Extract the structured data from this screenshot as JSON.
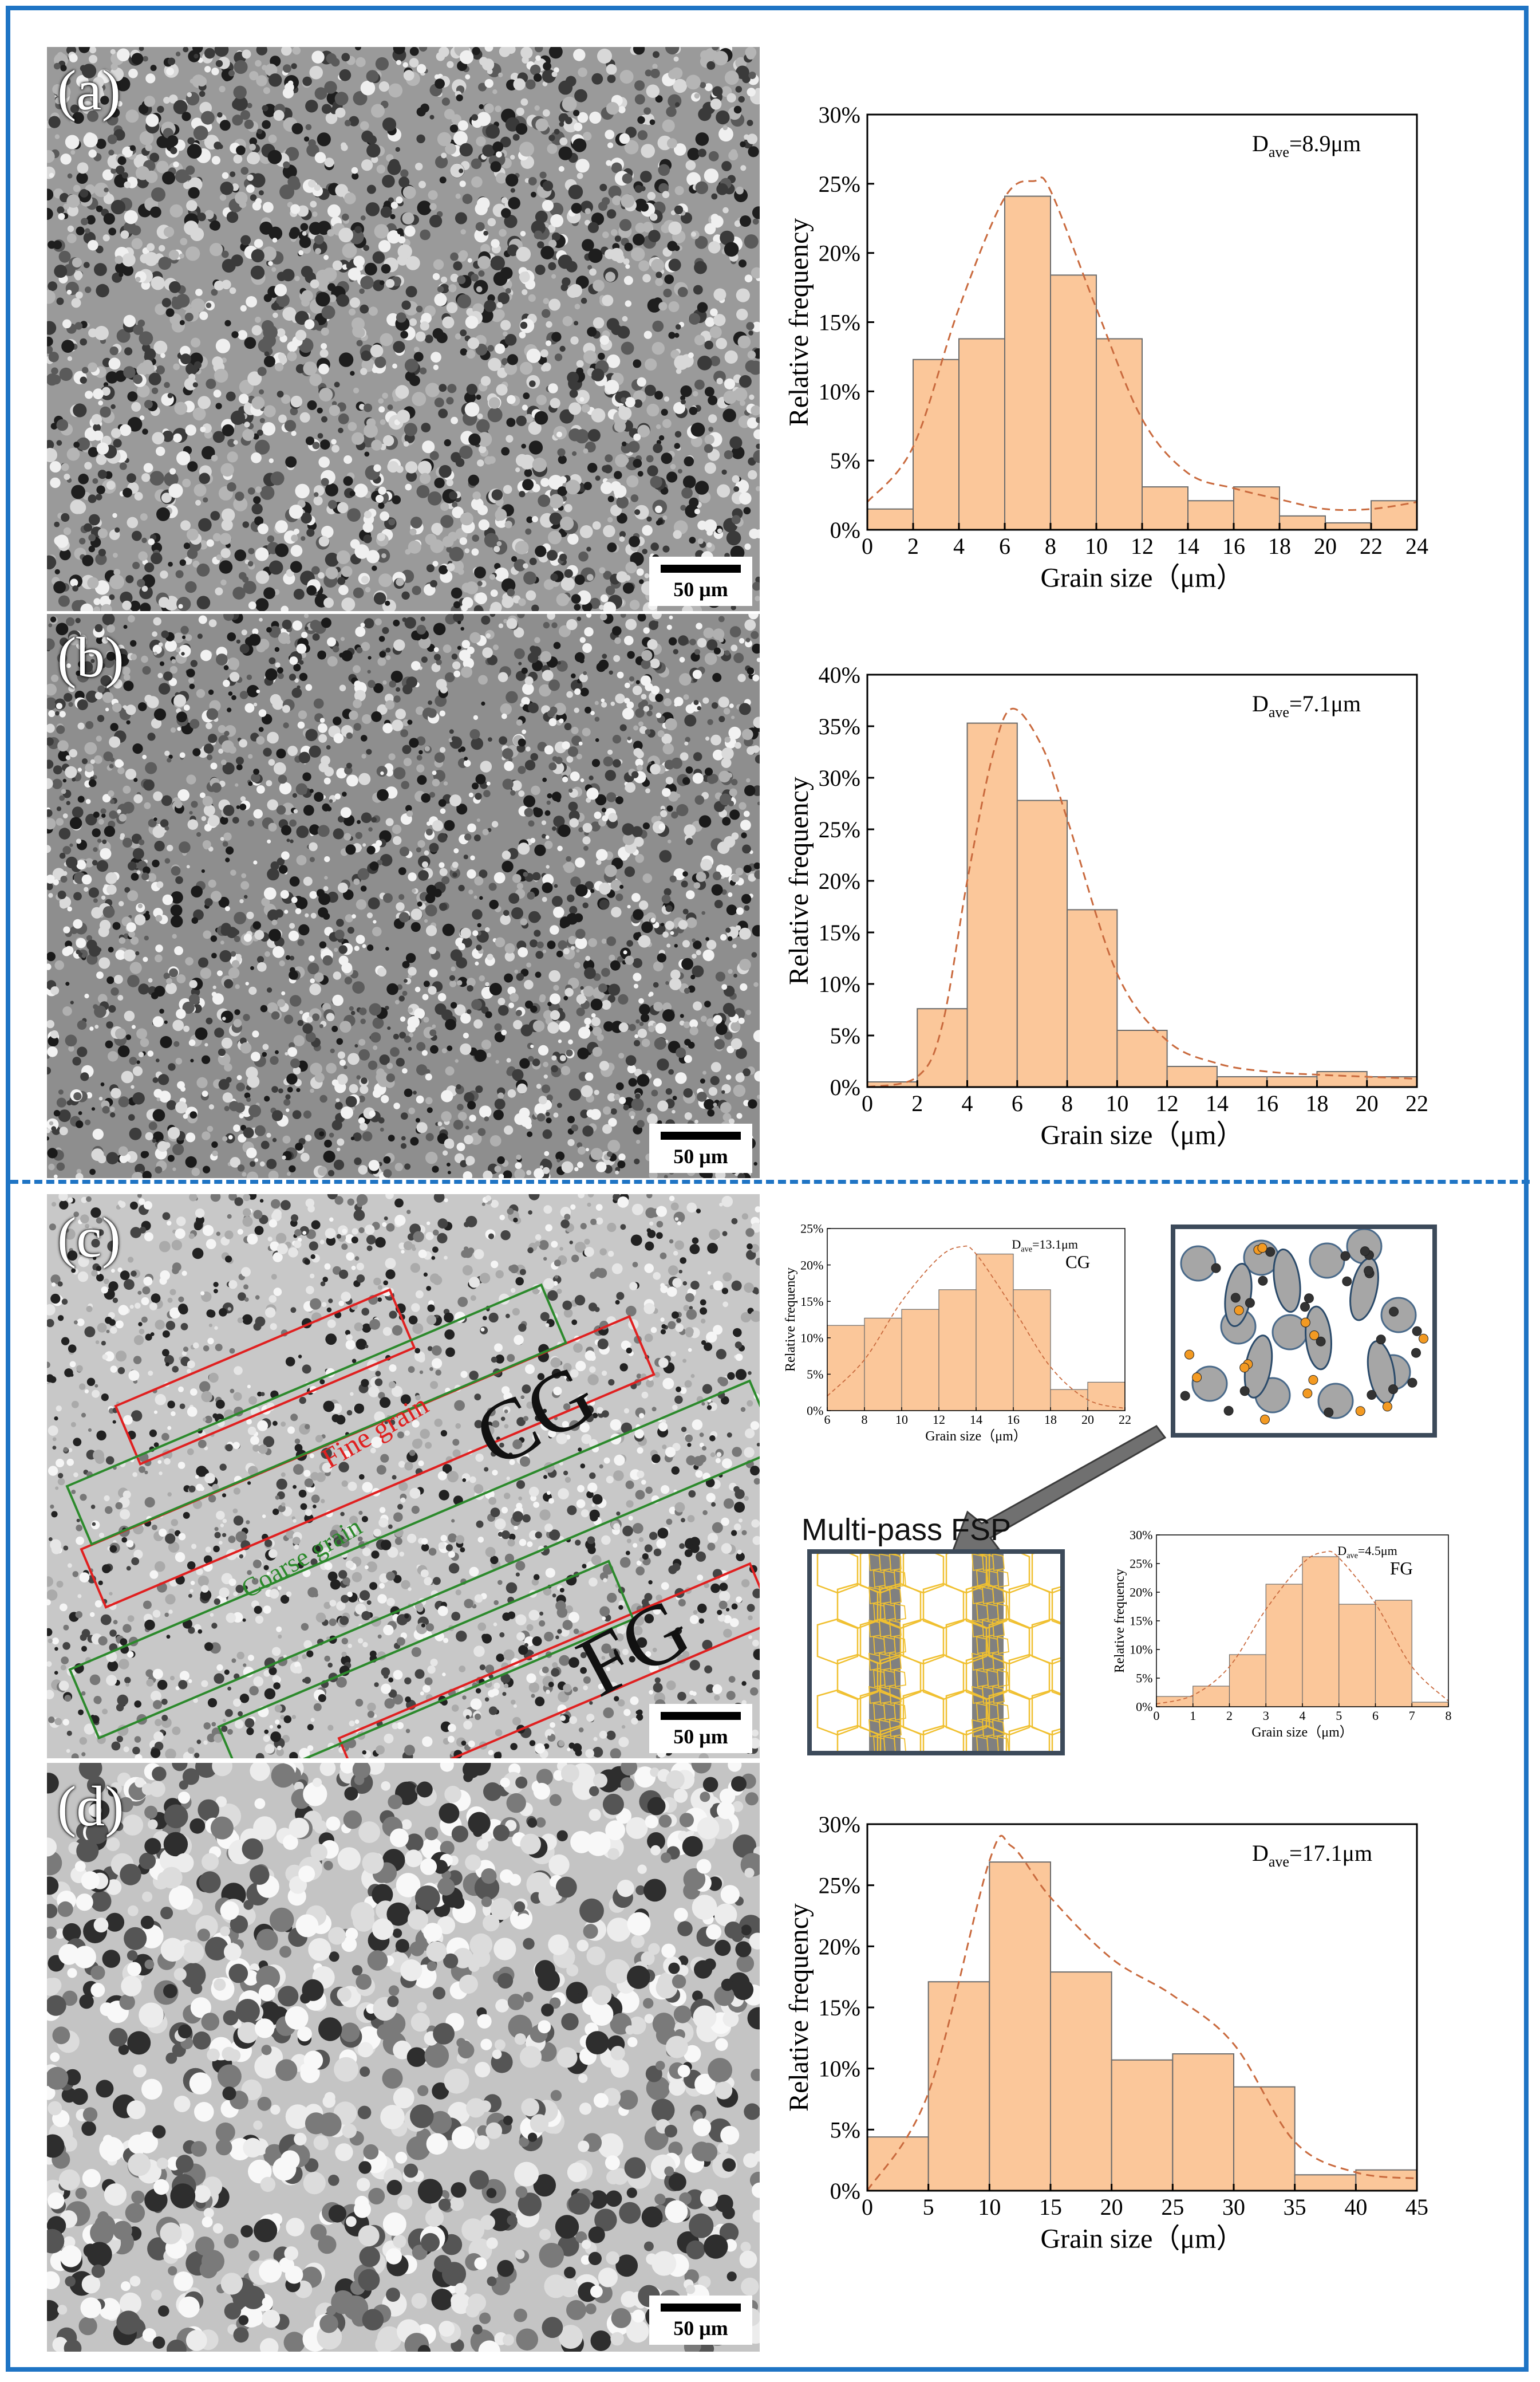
{
  "panel_labels": {
    "a": "(a)",
    "b": "(b)",
    "c": "(c)",
    "d": "(d)"
  },
  "scale_bar_text": "50 μm",
  "overlay_texts": {
    "fine_grain": "Fine grain",
    "coarse_grain": "Coarse grain",
    "cg_big": "CG",
    "fg_big": "FG"
  },
  "schematic": {
    "multipass_label": "Multi-pass FSP",
    "colors": {
      "particle_gray": "#a6a6a6",
      "particle_orange": "#f39a22",
      "particle_black": "#333333",
      "grain_line": "#f0c030",
      "band_gray": "#808080"
    }
  },
  "colors": {
    "frame": "#1f74c4",
    "bar_fill": "#fbc79a",
    "bar_edge": "#6b6b6b",
    "fit_line": "#c96a3e",
    "box_red": "#e02020",
    "box_green": "#2c8a2c"
  },
  "chart_data": [
    {
      "id": "a",
      "type": "bar",
      "annotation": "D_ave=8.9μm",
      "ylabel": "Relative frequency",
      "xlabel": "Grain size（μm）",
      "x_ticks": [
        "0",
        "2",
        "4",
        "6",
        "8",
        "10",
        "12",
        "14",
        "16",
        "18",
        "20",
        "22",
        "24"
      ],
      "y_ticks": [
        "0%",
        "5%",
        "10%",
        "15%",
        "20%",
        "25%",
        "30%"
      ],
      "xlim": [
        0,
        24
      ],
      "ylim": [
        0,
        30
      ],
      "bin_width": 2,
      "bin_starts": [
        0,
        2,
        4,
        6,
        8,
        10,
        12,
        14,
        16,
        18,
        20,
        22
      ],
      "values": [
        1.5,
        12.3,
        13.8,
        24.1,
        18.4,
        13.8,
        3.1,
        2.1,
        3.1,
        1.0,
        0.5,
        2.1
      ],
      "fit_x": [
        0,
        2,
        4,
        6,
        7.3,
        8,
        10,
        12,
        14,
        16,
        18,
        20,
        22,
        24
      ],
      "fit_y": [
        2,
        6,
        16,
        24,
        25.2,
        24.5,
        16,
        8,
        4.1,
        3.0,
        2.2,
        1.5,
        1.5,
        2.0
      ]
    },
    {
      "id": "b",
      "type": "bar",
      "annotation": "D_ave=7.1μm",
      "ylabel": "Relative frequency",
      "xlabel": "Grain size（μm）",
      "x_ticks": [
        "0",
        "2",
        "4",
        "6",
        "8",
        "10",
        "12",
        "14",
        "16",
        "18",
        "20",
        "22"
      ],
      "y_ticks": [
        "0%",
        "5%",
        "10%",
        "15%",
        "20%",
        "25%",
        "30%",
        "35%",
        "40%"
      ],
      "xlim": [
        0,
        22
      ],
      "ylim": [
        0,
        40
      ],
      "bin_width": 2,
      "bin_starts": [
        0,
        2,
        4,
        6,
        8,
        10,
        12,
        14,
        16,
        18,
        20
      ],
      "values": [
        0.5,
        7.6,
        35.3,
        27.8,
        17.2,
        5.5,
        2.0,
        1.0,
        1.0,
        1.5,
        1.0
      ],
      "fit_x": [
        0,
        2,
        3,
        4,
        5,
        5.8,
        7,
        8,
        10,
        12,
        14,
        16,
        18,
        20,
        22
      ],
      "fit_y": [
        0,
        1,
        6,
        20,
        32,
        36.7,
        33,
        26,
        11,
        4.5,
        2.3,
        1.5,
        1.2,
        1.0,
        0.8
      ]
    },
    {
      "id": "c_cg",
      "type": "bar",
      "annotation": "D_ave=13.1μm",
      "label": "CG",
      "ylabel": "Relative frequency",
      "xlabel": "Grain size（μm）",
      "x_ticks": [
        "6",
        "8",
        "10",
        "12",
        "14",
        "16",
        "18",
        "20",
        "22"
      ],
      "y_ticks": [
        "0%",
        "5%",
        "10%",
        "15%",
        "20%",
        "25%"
      ],
      "xlim": [
        6,
        22
      ],
      "ylim": [
        0,
        25
      ],
      "bin_width": 2,
      "bin_starts": [
        6,
        8,
        10,
        12,
        14,
        16,
        18,
        20
      ],
      "values": [
        11.7,
        12.7,
        13.9,
        16.6,
        21.5,
        16.6,
        2.9,
        3.9
      ],
      "fit_x": [
        6,
        8,
        10,
        12,
        13.2,
        14,
        16,
        18,
        20,
        22
      ],
      "fit_y": [
        2,
        7,
        15,
        21,
        22.5,
        21.5,
        14,
        6,
        1.5,
        0.3
      ]
    },
    {
      "id": "c_fg",
      "type": "bar",
      "annotation": "D_ave=4.5μm",
      "label": "FG",
      "ylabel": "Relative frequency",
      "xlabel": "Grain size（μm）",
      "x_ticks": [
        "0",
        "1",
        "2",
        "3",
        "4",
        "5",
        "6",
        "7",
        "8"
      ],
      "y_ticks": [
        "0%",
        "5%",
        "10%",
        "15%",
        "20%",
        "25%",
        "30%"
      ],
      "xlim": [
        0,
        8
      ],
      "ylim": [
        0,
        30
      ],
      "bin_width": 1,
      "bin_starts": [
        0,
        1,
        2,
        3,
        4,
        5,
        6,
        7
      ],
      "values": [
        1.8,
        3.6,
        9.1,
        21.4,
        26.2,
        17.9,
        18.6,
        0.8
      ],
      "fit_x": [
        0,
        1,
        2,
        3,
        4,
        4.6,
        5,
        6,
        7,
        8
      ],
      "fit_y": [
        0.5,
        2,
        7,
        17,
        25,
        27,
        26,
        18,
        7,
        1
      ]
    },
    {
      "id": "d",
      "type": "bar",
      "annotation": "D_ave=17.1μm",
      "ylabel": "Relative frequency",
      "xlabel": "Grain size（μm）",
      "x_ticks": [
        "0",
        "5",
        "10",
        "15",
        "20",
        "25",
        "30",
        "35",
        "40",
        "45"
      ],
      "y_ticks": [
        "0%",
        "5%",
        "10%",
        "15%",
        "20%",
        "25%",
        "30%"
      ],
      "xlim": [
        0,
        45
      ],
      "ylim": [
        0,
        30
      ],
      "bin_width": 5,
      "bin_starts": [
        0,
        5,
        10,
        15,
        20,
        25,
        30,
        35,
        40
      ],
      "values": [
        4.4,
        17.1,
        26.9,
        17.9,
        10.7,
        11.2,
        8.5,
        1.3,
        1.7
      ],
      "fit_x": [
        0,
        5,
        10,
        11.8,
        15,
        20,
        25,
        30,
        35,
        40,
        45
      ],
      "fit_y": [
        0,
        8,
        27,
        28.2,
        24,
        19,
        16,
        12,
        4,
        1.5,
        1
      ]
    }
  ]
}
